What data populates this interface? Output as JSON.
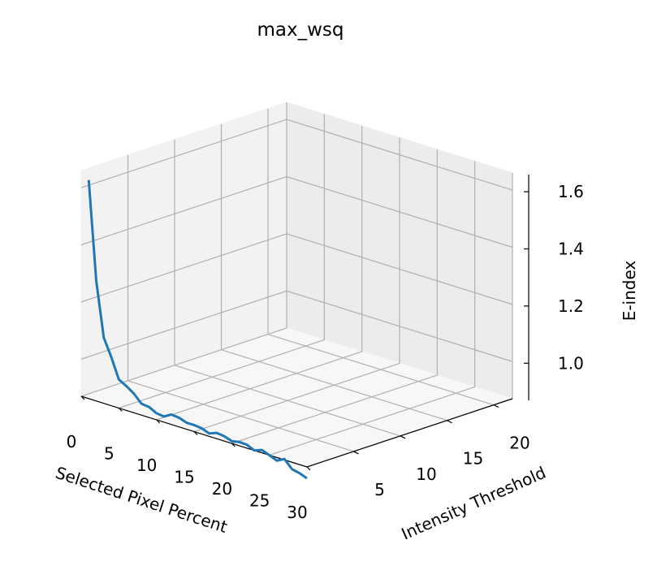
{
  "chart_data": {
    "type": "line",
    "projection": "3d",
    "title": "max_wsq",
    "xlabel": "Selected Pixel Percent",
    "ylabel": "Intensity Threshold",
    "zlabel": "E-index",
    "x_ticks": [
      "0",
      "5",
      "10",
      "15",
      "20",
      "25",
      "30"
    ],
    "y_ticks": [
      "5",
      "10",
      "15",
      "20"
    ],
    "z_ticks": [
      "1.0",
      "1.2",
      "1.4",
      "1.6"
    ],
    "xlim": [
      0,
      30
    ],
    "ylim": [
      0,
      22
    ],
    "zlim": [
      0.87,
      1.66
    ],
    "grid": true,
    "series": [
      {
        "color": "#1f77b4",
        "intensity_threshold": 0,
        "x": [
          1,
          2,
          3,
          4,
          5,
          6,
          7,
          8,
          9,
          10,
          11,
          12,
          13,
          14,
          15,
          16,
          17,
          18,
          19,
          20,
          21,
          22,
          23,
          24,
          25,
          26,
          27,
          28,
          29,
          30
        ],
        "z": [
          1.635,
          1.29,
          1.1,
          1.04,
          0.97,
          0.955,
          0.937,
          0.91,
          0.907,
          0.893,
          0.89,
          0.905,
          0.902,
          0.893,
          0.893,
          0.89,
          0.88,
          0.89,
          0.887,
          0.878,
          0.883,
          0.882,
          0.87,
          0.88,
          0.87,
          0.859,
          0.873,
          0.846,
          0.84,
          0.83
        ]
      }
    ]
  }
}
